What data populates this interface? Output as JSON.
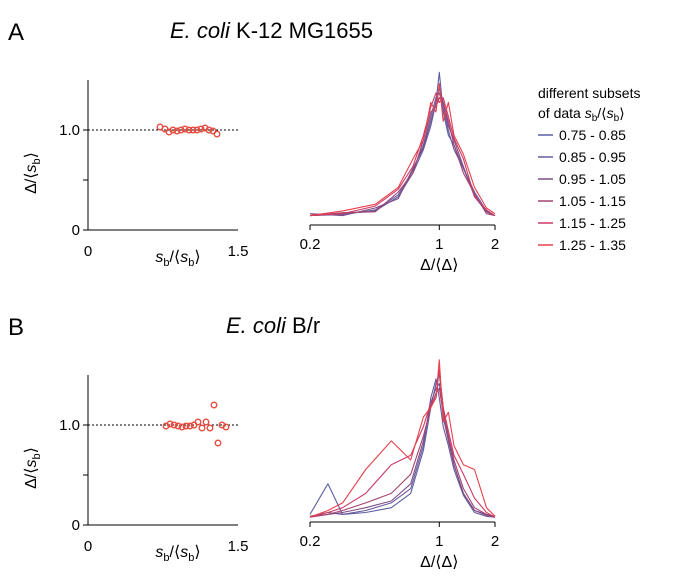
{
  "panels": [
    {
      "letter": "A",
      "title_italic": "E. coli",
      "title_rest": " K-12 MG1655"
    },
    {
      "letter": "B",
      "title_italic": "E. coli",
      "title_rest": " B/r"
    }
  ],
  "legend": {
    "title_line1": "different subsets",
    "title_line2_prefix": "of data ",
    "title_line2_var": "s",
    "title_line2_sub": "b",
    "title_line2_mid": "/⟨",
    "title_line2_var2": "s",
    "title_line2_sub2": "b",
    "title_line2_end": "⟩"
  },
  "colors": {
    "series": [
      "#5b5ea6",
      "#6a5a9a",
      "#7d4f86",
      "#a44470",
      "#cc3b66",
      "#e8404c"
    ],
    "scatter": "#e8493c"
  },
  "axes": {
    "left_x_ticks": [
      "0",
      "1.5"
    ],
    "left_y_ticks": [
      "0",
      "1.0"
    ],
    "right_x_ticks": [
      "0.2",
      "1",
      "2"
    ],
    "left_xlabel": {
      "var": "s",
      "sub": "b",
      "mid": "/⟨",
      "var2": "s",
      "sub2": "b",
      "end": "⟩"
    },
    "left_ylabel": {
      "pre": "Δ/⟨",
      "var": "s",
      "sub": "b",
      "end": "⟩"
    },
    "right_xlabel": "Δ/⟨Δ⟩"
  },
  "chart_data": [
    {
      "type": "scatter",
      "panel": "A",
      "xlim": [
        0,
        1.5
      ],
      "ylim": [
        0,
        1.5
      ],
      "reference_line_y": 1.0,
      "x": [
        0.72,
        0.77,
        0.81,
        0.85,
        0.89,
        0.93,
        0.97,
        1.01,
        1.05,
        1.09,
        1.13,
        1.17,
        1.21,
        1.25,
        1.29
      ],
      "y": [
        1.03,
        1.01,
        0.98,
        1.0,
        0.99,
        1.0,
        1.01,
        1.0,
        1.0,
        1.0,
        1.01,
        1.02,
        1.0,
        0.99,
        0.96
      ]
    },
    {
      "type": "line",
      "panel": "A",
      "xscale": "log",
      "xlim": [
        0.2,
        2
      ],
      "series": [
        {
          "name": "0.75 - 0.85",
          "x": [
            0.2,
            0.3,
            0.45,
            0.6,
            0.72,
            0.82,
            0.9,
            0.96,
            1.0,
            1.05,
            1.12,
            1.2,
            1.35,
            1.55,
            1.8,
            2.0
          ],
          "y": [
            0.1,
            0.12,
            0.15,
            0.3,
            0.55,
            0.8,
            1.05,
            1.3,
            1.62,
            1.2,
            0.95,
            0.85,
            0.6,
            0.35,
            0.15,
            0.1
          ]
        },
        {
          "name": "0.85 - 0.95",
          "x": [
            0.2,
            0.3,
            0.45,
            0.6,
            0.72,
            0.82,
            0.9,
            0.96,
            1.0,
            1.05,
            1.12,
            1.2,
            1.35,
            1.55,
            1.8,
            2.0
          ],
          "y": [
            0.1,
            0.11,
            0.16,
            0.32,
            0.58,
            0.85,
            1.15,
            1.35,
            1.4,
            1.25,
            1.0,
            0.8,
            0.6,
            0.32,
            0.14,
            0.1
          ]
        },
        {
          "name": "0.95 - 1.05",
          "x": [
            0.2,
            0.3,
            0.45,
            0.6,
            0.72,
            0.82,
            0.9,
            0.96,
            1.0,
            1.05,
            1.12,
            1.2,
            1.35,
            1.55,
            1.8,
            2.0
          ],
          "y": [
            0.12,
            0.1,
            0.18,
            0.28,
            0.6,
            0.82,
            1.1,
            1.3,
            1.45,
            1.3,
            1.05,
            0.9,
            0.62,
            0.3,
            0.14,
            0.1
          ]
        },
        {
          "name": "1.05 - 1.15",
          "x": [
            0.2,
            0.3,
            0.45,
            0.6,
            0.72,
            0.82,
            0.9,
            0.96,
            1.0,
            1.05,
            1.12,
            1.2,
            1.35,
            1.55,
            1.8,
            2.0
          ],
          "y": [
            0.1,
            0.13,
            0.14,
            0.35,
            0.55,
            0.9,
            1.2,
            1.25,
            1.35,
            1.3,
            1.1,
            0.85,
            0.55,
            0.33,
            0.12,
            0.1
          ]
        },
        {
          "name": "1.15 - 1.25",
          "x": [
            0.2,
            0.3,
            0.45,
            0.6,
            0.72,
            0.82,
            0.9,
            0.96,
            1.0,
            1.05,
            1.12,
            1.2,
            1.35,
            1.55,
            1.8,
            2.0
          ],
          "y": [
            0.1,
            0.12,
            0.2,
            0.38,
            0.62,
            0.95,
            1.25,
            1.4,
            1.3,
            1.35,
            1.15,
            0.92,
            0.7,
            0.3,
            0.16,
            0.1
          ]
        },
        {
          "name": "1.25 - 1.35",
          "x": [
            0.2,
            0.3,
            0.45,
            0.6,
            0.72,
            0.82,
            0.9,
            0.96,
            1.0,
            1.05,
            1.12,
            1.2,
            1.35,
            1.55,
            1.8,
            2.0
          ],
          "y": [
            0.1,
            0.15,
            0.22,
            0.4,
            0.7,
            0.9,
            1.3,
            1.2,
            1.5,
            1.1,
            1.3,
            0.95,
            0.75,
            0.4,
            0.18,
            0.12
          ]
        }
      ]
    },
    {
      "type": "scatter",
      "panel": "B",
      "xlim": [
        0,
        1.5
      ],
      "ylim": [
        0,
        1.5
      ],
      "reference_line_y": 1.0,
      "x": [
        0.78,
        0.82,
        0.86,
        0.9,
        0.94,
        0.98,
        1.02,
        1.06,
        1.1,
        1.14,
        1.18,
        1.22,
        1.26,
        1.3,
        1.34,
        1.38
      ],
      "y": [
        0.99,
        1.01,
        1.0,
        0.99,
        0.98,
        0.99,
        0.99,
        1.0,
        1.03,
        0.97,
        1.03,
        0.97,
        1.2,
        0.82,
        1.0,
        0.98
      ]
    },
    {
      "type": "line",
      "panel": "B",
      "xscale": "log",
      "xlim": [
        0.2,
        2
      ],
      "series": [
        {
          "name": "0.75 - 0.85",
          "x": [
            0.2,
            0.25,
            0.3,
            0.4,
            0.55,
            0.7,
            0.82,
            0.9,
            0.96,
            1.0,
            1.05,
            1.12,
            1.2,
            1.35,
            1.55,
            1.8,
            2.0
          ],
          "y": [
            0.08,
            0.4,
            0.08,
            0.1,
            0.15,
            0.3,
            0.75,
            1.2,
            1.45,
            1.55,
            1.2,
            0.9,
            0.6,
            0.3,
            0.12,
            0.08,
            0.06
          ]
        },
        {
          "name": "0.85 - 0.95",
          "x": [
            0.2,
            0.25,
            0.3,
            0.4,
            0.55,
            0.7,
            0.82,
            0.9,
            0.96,
            1.0,
            1.05,
            1.12,
            1.2,
            1.35,
            1.55,
            1.8,
            2.0
          ],
          "y": [
            0.06,
            0.1,
            0.08,
            0.12,
            0.2,
            0.35,
            0.8,
            1.3,
            1.5,
            1.3,
            1.0,
            0.8,
            0.55,
            0.28,
            0.1,
            0.06,
            0.05
          ]
        },
        {
          "name": "0.95 - 1.05",
          "x": [
            0.2,
            0.25,
            0.3,
            0.4,
            0.55,
            0.7,
            0.82,
            0.9,
            0.96,
            1.0,
            1.05,
            1.12,
            1.2,
            1.35,
            1.55,
            1.8,
            2.0
          ],
          "y": [
            0.06,
            0.08,
            0.1,
            0.15,
            0.22,
            0.4,
            0.85,
            1.25,
            1.4,
            1.45,
            1.1,
            0.85,
            0.6,
            0.3,
            0.12,
            0.07,
            0.05
          ]
        },
        {
          "name": "1.05 - 1.15",
          "x": [
            0.2,
            0.25,
            0.3,
            0.4,
            0.55,
            0.7,
            0.82,
            0.9,
            0.96,
            1.0,
            1.05,
            1.12,
            1.2,
            1.35,
            1.55,
            1.8,
            2.0
          ],
          "y": [
            0.05,
            0.08,
            0.12,
            0.2,
            0.3,
            0.5,
            0.9,
            1.2,
            1.35,
            1.4,
            1.15,
            0.9,
            0.65,
            0.35,
            0.15,
            0.08,
            0.05
          ]
        },
        {
          "name": "1.15 - 1.25",
          "x": [
            0.2,
            0.25,
            0.3,
            0.4,
            0.55,
            0.7,
            0.82,
            0.9,
            0.96,
            1.0,
            1.05,
            1.12,
            1.2,
            1.35,
            1.55,
            1.8,
            2.0
          ],
          "y": [
            0.05,
            0.1,
            0.15,
            0.3,
            0.6,
            0.7,
            1.0,
            1.25,
            1.3,
            1.6,
            1.2,
            0.95,
            0.7,
            0.5,
            0.25,
            0.1,
            0.05
          ]
        },
        {
          "name": "1.25 - 1.35",
          "x": [
            0.2,
            0.25,
            0.3,
            0.4,
            0.55,
            0.7,
            0.82,
            0.9,
            0.96,
            1.0,
            1.05,
            1.12,
            1.2,
            1.35,
            1.55,
            1.8,
            2.0
          ],
          "y": [
            0.05,
            0.12,
            0.2,
            0.55,
            0.85,
            0.65,
            1.1,
            1.2,
            1.3,
            1.7,
            1.05,
            1.15,
            0.8,
            0.6,
            0.55,
            0.15,
            0.06
          ]
        }
      ]
    }
  ]
}
